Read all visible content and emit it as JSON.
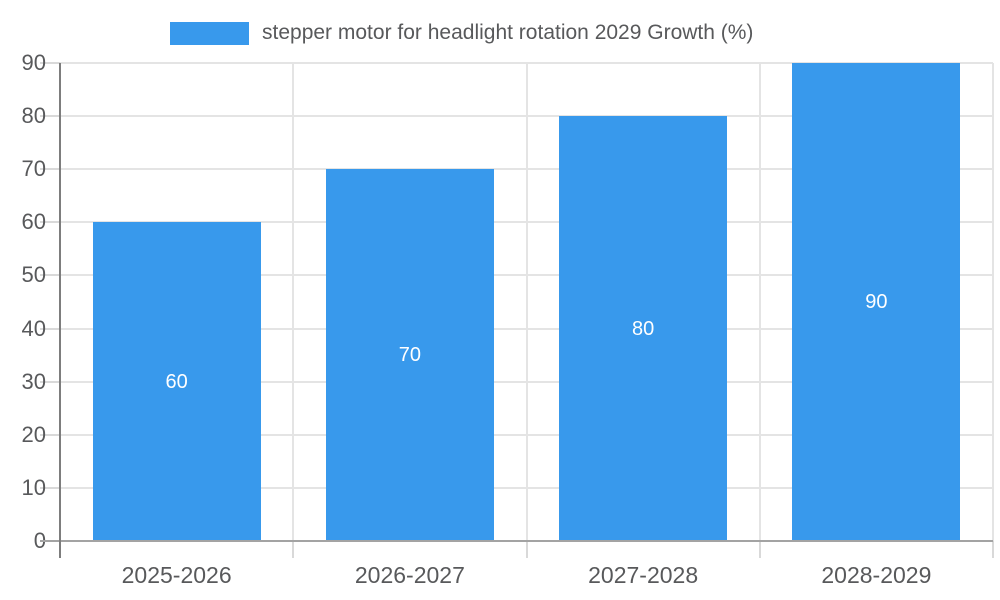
{
  "chart_data": {
    "type": "bar",
    "title": "stepper motor for headlight rotation 2029 Growth (%)",
    "legend": {
      "label": "stepper motor for headlight rotation 2029 Growth (%)",
      "position": "top"
    },
    "categories": [
      "2025-2026",
      "2026-2027",
      "2027-2028",
      "2028-2029"
    ],
    "values": [
      60,
      70,
      80,
      90
    ],
    "bar_labels": [
      "60",
      "70",
      "80",
      "90"
    ],
    "xlabel": "",
    "ylabel": "",
    "ylim": [
      0,
      90
    ],
    "yticks": [
      0,
      10,
      20,
      30,
      40,
      50,
      60,
      70,
      80,
      90
    ],
    "grid": "on",
    "colors": {
      "bar": "#3899EC",
      "bar_label": "#ffffff",
      "axis_text": "#58595b",
      "grid_line": "#e4e4e4",
      "tick_line": "#d9d9d9",
      "y_axis_line": "#7d7d7d",
      "baseline": "#a3a3a3"
    }
  }
}
